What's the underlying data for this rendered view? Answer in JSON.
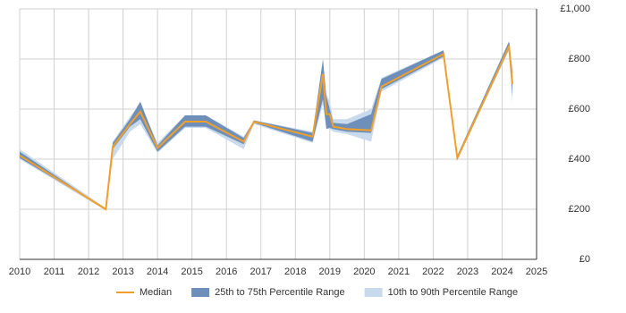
{
  "chart_data": {
    "type": "line",
    "x": [
      2010.0,
      2012.5,
      2012.7,
      2013.2,
      2013.5,
      2014.0,
      2014.8,
      2015.4,
      2016.5,
      2016.8,
      2018.5,
      2018.8,
      2018.9,
      2019.0,
      2019.1,
      2019.5,
      2020.2,
      2020.5,
      2022.3,
      2022.7,
      2024.2,
      2024.3
    ],
    "series": [
      {
        "name": "Median",
        "color": "#f0a02a",
        "values": [
          415,
          200,
          450,
          540,
          590,
          445,
          550,
          550,
          470,
          550,
          490,
          740,
          580,
          580,
          530,
          520,
          515,
          690,
          820,
          405,
          850,
          700
        ]
      },
      {
        "name": "25th to 75th Percentile Range",
        "color": "#6e8fba",
        "low": [
          405,
          200,
          440,
          530,
          560,
          430,
          530,
          530,
          460,
          545,
          470,
          640,
          520,
          525,
          520,
          510,
          505,
          680,
          810,
          400,
          840,
          650
        ],
        "high": [
          430,
          200,
          465,
          560,
          630,
          455,
          575,
          575,
          485,
          555,
          505,
          800,
          650,
          600,
          545,
          540,
          580,
          720,
          835,
          415,
          870,
          750
        ]
      },
      {
        "name": "10th to 90th Percentile Range",
        "color": "#c9daec",
        "low": [
          400,
          195,
          400,
          510,
          540,
          425,
          525,
          525,
          440,
          540,
          465,
          620,
          530,
          520,
          510,
          500,
          470,
          670,
          805,
          395,
          835,
          620
        ],
        "high": [
          440,
          205,
          470,
          570,
          620,
          465,
          575,
          575,
          490,
          555,
          510,
          680,
          660,
          630,
          560,
          560,
          600,
          725,
          835,
          415,
          870,
          760
        ]
      }
    ],
    "xlim": [
      2010,
      2025
    ],
    "xticks": [
      2010,
      2011,
      2012,
      2013,
      2014,
      2015,
      2016,
      2017,
      2018,
      2019,
      2020,
      2021,
      2022,
      2023,
      2024,
      2025
    ],
    "ylim": [
      0,
      1000
    ],
    "yticks": [
      {
        "value": 0,
        "label": "£0"
      },
      {
        "value": 200,
        "label": "£200"
      },
      {
        "value": 400,
        "label": "£400"
      },
      {
        "value": 600,
        "label": "£600"
      },
      {
        "value": 800,
        "label": "£800"
      },
      {
        "value": 1000,
        "label": "£1,000"
      }
    ],
    "grid": true,
    "legend": "bottom"
  }
}
